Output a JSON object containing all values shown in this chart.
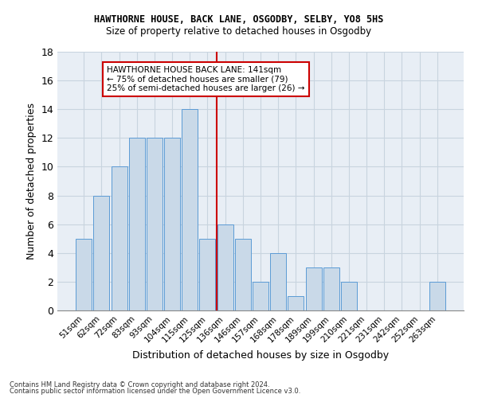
{
  "title1": "HAWTHORNE HOUSE, BACK LANE, OSGODBY, SELBY, YO8 5HS",
  "title2": "Size of property relative to detached houses in Osgodby",
  "xlabel": "Distribution of detached houses by size in Osgodby",
  "ylabel": "Number of detached properties",
  "bin_labels": [
    "51sqm",
    "62sqm",
    "72sqm",
    "83sqm",
    "93sqm",
    "104sqm",
    "115sqm",
    "125sqm",
    "136sqm",
    "146sqm",
    "157sqm",
    "168sqm",
    "178sqm",
    "189sqm",
    "199sqm",
    "210sqm",
    "221sqm",
    "231sqm",
    "242sqm",
    "252sqm",
    "263sqm"
  ],
  "bin_values": [
    5,
    8,
    10,
    12,
    12,
    12,
    14,
    5,
    6,
    5,
    2,
    4,
    1,
    3,
    3,
    2,
    0,
    0,
    0,
    0,
    2
  ],
  "bar_color": "#c9d9e8",
  "bar_edge_color": "#5b9bd5",
  "annotation_line1": "HAWTHORNE HOUSE BACK LANE: 141sqm",
  "annotation_line2": "← 75% of detached houses are smaller (79)",
  "annotation_line3": "25% of semi-detached houses are larger (26) →",
  "annotation_box_color": "#ffffff",
  "annotation_box_edge": "#cc0000",
  "highlight_line_color": "#cc0000",
  "ylim": [
    0,
    18
  ],
  "yticks": [
    0,
    2,
    4,
    6,
    8,
    10,
    12,
    14,
    16,
    18
  ],
  "footer1": "Contains HM Land Registry data © Crown copyright and database right 2024.",
  "footer2": "Contains public sector information licensed under the Open Government Licence v3.0.",
  "grid_color": "#c8d4df",
  "background_color": "#e8eef5"
}
